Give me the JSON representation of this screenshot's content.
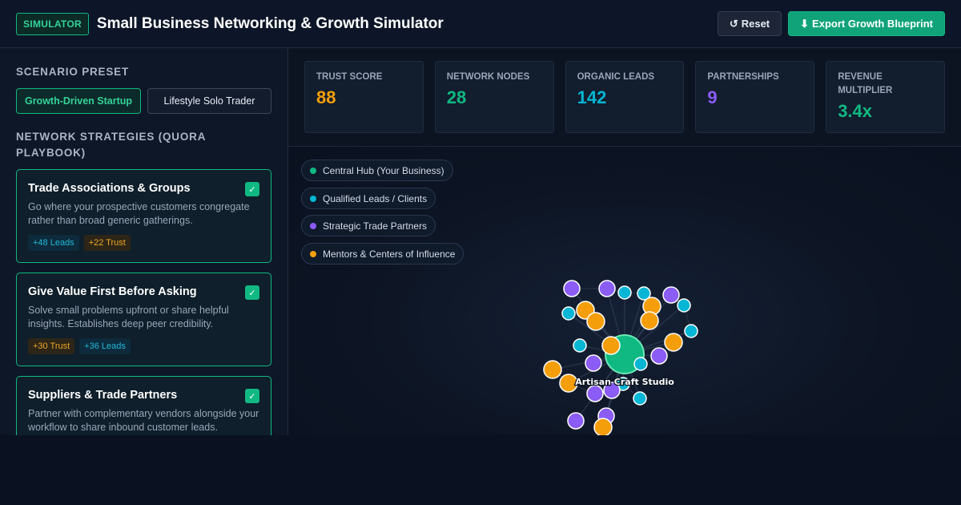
{
  "header": {
    "badge": "SIMULATOR",
    "title": "Small Business Networking & Growth Simulator",
    "reset_icon": "↺",
    "reset_label": "Reset",
    "export_icon": "⬇",
    "export_label": "Export Growth Blueprint"
  },
  "sidebar": {
    "preset_heading": "Scenario Preset",
    "presets": [
      {
        "label": "Growth-Driven Startup",
        "active": true
      },
      {
        "label": "Lifestyle Solo Trader",
        "active": false
      }
    ],
    "strategies_heading": "Network Strategies (Quora Playbook)",
    "strategies": [
      {
        "title": "Trade Associations & Groups",
        "description": "Go where your prospective customers congregate rather than broad generic gatherings.",
        "checked": true,
        "tags": [
          {
            "label": "+48 Leads",
            "kind": "leads"
          },
          {
            "label": "+22 Trust",
            "kind": "trust"
          }
        ]
      },
      {
        "title": "Give Value First Before Asking",
        "description": "Solve small problems upfront or share helpful insights. Establishes deep peer credibility.",
        "checked": true,
        "tags": [
          {
            "label": "+30 Trust",
            "kind": "trust"
          },
          {
            "label": "+36 Leads",
            "kind": "leads"
          }
        ]
      },
      {
        "title": "Suppliers & Trade Partners",
        "description": "Partner with complementary vendors alongside your workflow to share inbound customer leads.",
        "checked": true,
        "tags": []
      }
    ]
  },
  "stats": [
    {
      "label": "Trust Score",
      "value": "88",
      "color": "orange"
    },
    {
      "label": "Network Nodes",
      "value": "28",
      "color": "green"
    },
    {
      "label": "Organic Leads",
      "value": "142",
      "color": "cyan"
    },
    {
      "label": "Partnerships",
      "value": "9",
      "color": "purple"
    },
    {
      "label": "Revenue Multiplier",
      "value": "3.4x",
      "color": "green"
    }
  ],
  "legend": [
    {
      "label": "Central Hub (Your Business)",
      "color": "#10b981"
    },
    {
      "label": "Qualified Leads / Clients",
      "color": "#06b6d4"
    },
    {
      "label": "Strategic Trade Partners",
      "color": "#8b5cf6"
    },
    {
      "label": "Mentors & Centers of Influence",
      "color": "#f59e0b"
    }
  ],
  "graph": {
    "hub_label": "Artisan Craft Studio",
    "colors": {
      "hub": "#10b981",
      "lead": "#06b6d4",
      "partner": "#8b5cf6",
      "mentor": "#f59e0b"
    }
  }
}
